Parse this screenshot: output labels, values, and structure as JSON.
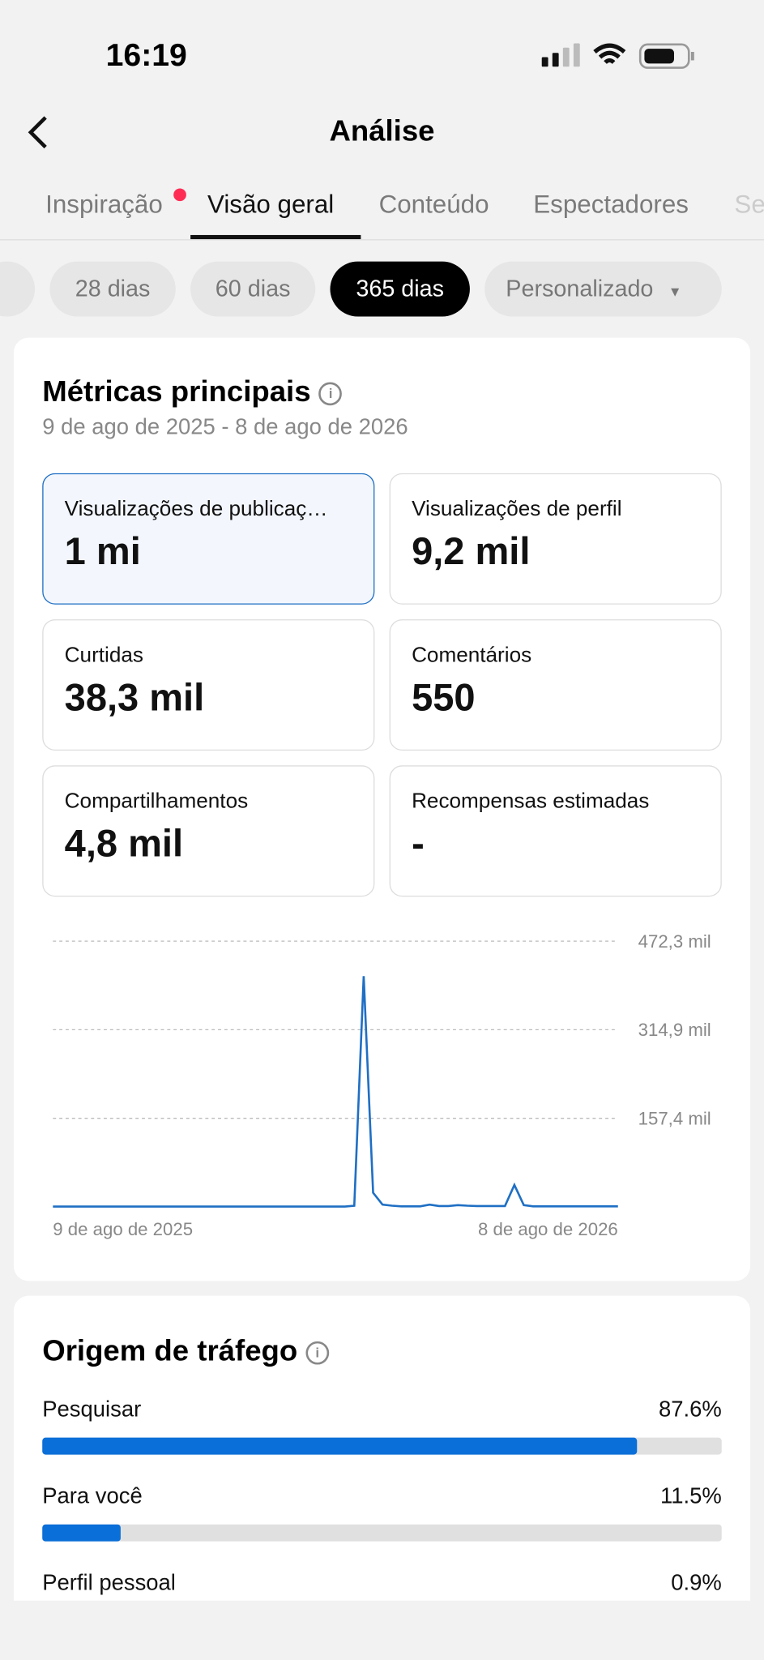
{
  "status_bar": {
    "time": "16:19"
  },
  "header": {
    "title": "Análise"
  },
  "tabs": [
    "Inspiração",
    "Visão geral",
    "Conteúdo",
    "Espectadores",
    "Se"
  ],
  "filters": [
    "28 dias",
    "60 dias",
    "365 dias",
    "Personalizado"
  ],
  "metrics": {
    "title": "Métricas principais",
    "date_range": "9 de ago de 2025 - 8 de ago de 2026",
    "cards": [
      {
        "label": "Visualizações de publicaç…",
        "value": "1 mi"
      },
      {
        "label": "Visualizações de perfil",
        "value": "9,2 mil"
      },
      {
        "label": "Curtidas",
        "value": "38,3 mil"
      },
      {
        "label": "Comentários",
        "value": "550"
      },
      {
        "label": "Compartilhamentos",
        "value": "4,8 mil"
      },
      {
        "label": "Recompensas estimadas",
        "value": "-"
      }
    ]
  },
  "chart": {
    "type": "line",
    "color": "#1f6fc4",
    "values": [
      0.5,
      0.5,
      0.5,
      0.5,
      0.5,
      0.5,
      0.5,
      0.5,
      0.5,
      0.5,
      0.5,
      0.5,
      0.5,
      0.5,
      0.5,
      0.5,
      0.5,
      0.5,
      0.5,
      0.5,
      0.5,
      0.5,
      0.5,
      0.5,
      0.5,
      0.5,
      0.5,
      0.5,
      0.5,
      0.5,
      0.5,
      0.5,
      2,
      410,
      25,
      4,
      2,
      1,
      1,
      1,
      4,
      1.5,
      1.5,
      3,
      2,
      1.5,
      1.5,
      1.5,
      1.5,
      39,
      3,
      1,
      1,
      1,
      1,
      1,
      1,
      1,
      1,
      1,
      1
    ],
    "ylim": [
      0,
      472.3
    ],
    "yticks": [
      {
        "value": 472.3,
        "label": "472,3 mil"
      },
      {
        "value": 314.9,
        "label": "314,9 mil"
      },
      {
        "value": 157.4,
        "label": "157,4 mil"
      }
    ],
    "x_labels": [
      "9 de ago de 2025",
      "8 de ago de 2026"
    ]
  },
  "traffic": {
    "title": "Origem de tráfego",
    "sources": [
      {
        "name": "Pesquisar",
        "value": 87.6,
        "value_label": "87.6%"
      },
      {
        "name": "Para você",
        "value": 11.5,
        "value_label": "11.5%"
      },
      {
        "name": "Perfil pessoal",
        "value": 0.9,
        "value_label": "0.9%"
      }
    ]
  }
}
